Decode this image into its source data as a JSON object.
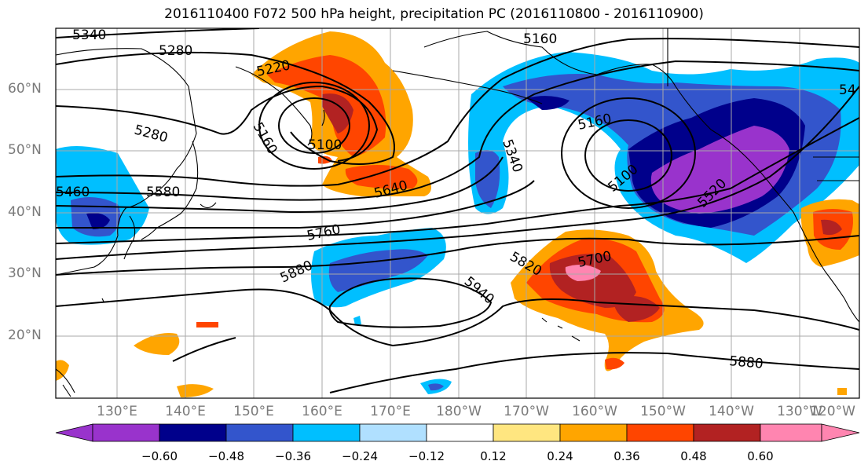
{
  "title": "2016110400 F072 500 hPa height, precipitation PC (2016110800 - 2016110900)",
  "lat_labels": [
    "60°N",
    "50°N",
    "40°N",
    "30°N",
    "20°N"
  ],
  "lon_labels": [
    "130°E",
    "140°E",
    "150°E",
    "160°E",
    "170°E",
    "180°W",
    "170°W",
    "160°W",
    "150°W",
    "140°W",
    "130°W",
    "120°W"
  ],
  "contour_labels": [
    "5340",
    "5280",
    "5220",
    "5160",
    "5100",
    "5280",
    "5160",
    "5460",
    "5580",
    "5640",
    "5760",
    "5880",
    "5940",
    "5820",
    "5700",
    "5340",
    "5160",
    "5100",
    "5520",
    "5880",
    "54"
  ],
  "colorbar": {
    "labels": [
      "−0.60",
      "−0.48",
      "−0.36",
      "−0.24",
      "−0.12",
      "0.12",
      "0.24",
      "0.36",
      "0.48",
      "0.60"
    ],
    "colors": [
      "#9933cc",
      "#00008b",
      "#3355cc",
      "#00bfff",
      "#b0e0ff",
      "#ffffff",
      "#ffe680",
      "#ffa500",
      "#ff4500",
      "#b22222",
      "#ff85b0"
    ]
  }
}
